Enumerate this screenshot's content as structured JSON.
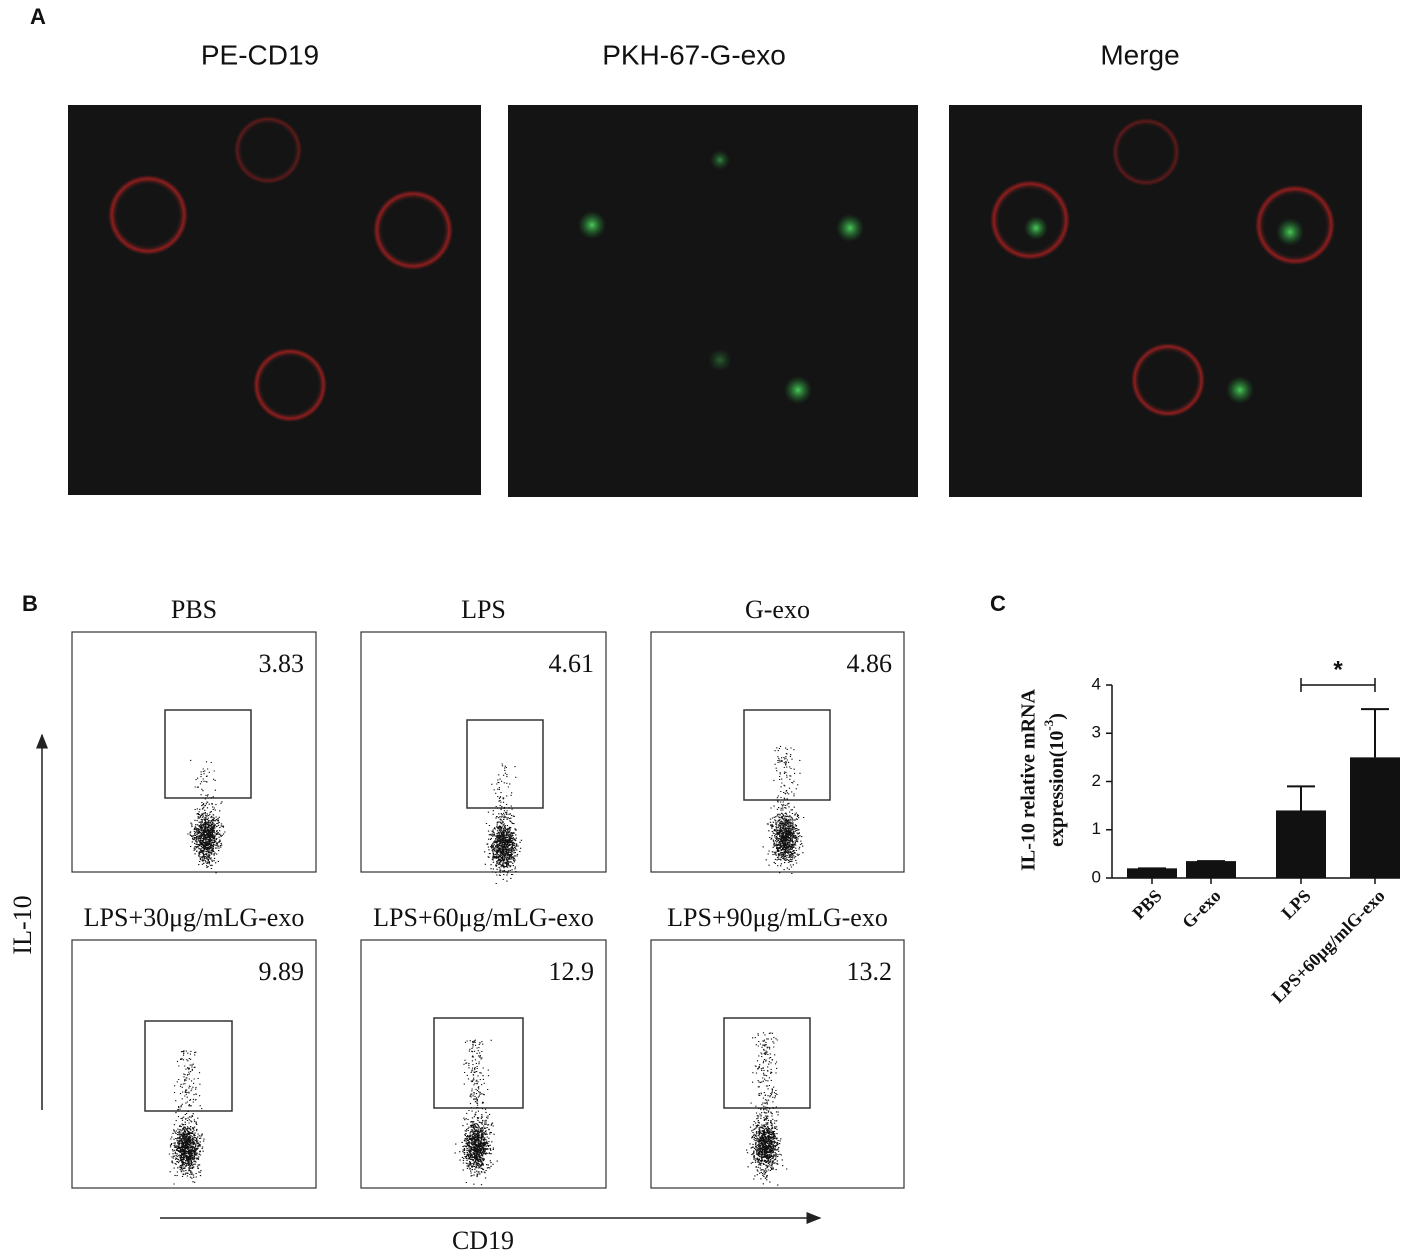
{
  "panel_a": {
    "label": "A",
    "titles": [
      "PE-CD19",
      "PKH-67-G-exo",
      "Merge"
    ]
  },
  "panel_b": {
    "label": "B",
    "y_label": "IL-10",
    "x_label": "CD19",
    "plots": [
      {
        "title": "PBS",
        "percent": 3.83
      },
      {
        "title": "LPS",
        "percent": 4.61
      },
      {
        "title": "G-exo",
        "percent": 4.86
      },
      {
        "title": "LPS+30μg/mLG-exo",
        "percent": 9.89
      },
      {
        "title": "LPS+60μg/mLG-exo",
        "percent": 12.9
      },
      {
        "title": "LPS+90μg/mLG-exo",
        "percent": 13.2
      }
    ]
  },
  "panel_c": {
    "label": "C"
  },
  "chart_data": {
    "type": "bar",
    "categories": [
      "PBS",
      "G-exo",
      "LPS",
      "LPS+60μg/mlG-exo"
    ],
    "values": [
      0.2,
      0.35,
      1.4,
      2.5
    ],
    "errors": [
      0,
      0,
      0.5,
      1.0
    ],
    "color": "#111111",
    "ylim": [
      0,
      4
    ],
    "yticks": [
      0,
      1,
      2,
      3,
      4
    ],
    "y_label": {
      "line1": "IL-10 relative mRNA",
      "line2": "expression(10",
      "sup": "-3",
      "close": ")"
    },
    "annotation": "*"
  }
}
